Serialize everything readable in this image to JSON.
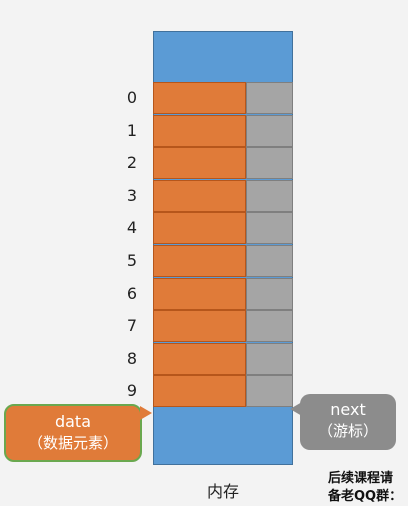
{
  "rows": [
    {
      "index": "0"
    },
    {
      "index": "1"
    },
    {
      "index": "2"
    },
    {
      "index": "3"
    },
    {
      "index": "4"
    },
    {
      "index": "5"
    },
    {
      "index": "6"
    },
    {
      "index": "7"
    },
    {
      "index": "8"
    },
    {
      "index": "9"
    }
  ],
  "callout_data": {
    "line1": "data",
    "line2": "（数据元素）"
  },
  "callout_next": {
    "line1": "next",
    "line2": "（游标）"
  },
  "caption": "内存",
  "corner_text": {
    "line1": "后续课程请",
    "line2": "备老QQ群："
  },
  "colors": {
    "memory_blue": "#5b9bd5",
    "data_orange": "#e07b39",
    "next_gray": "#a5a5a5"
  }
}
